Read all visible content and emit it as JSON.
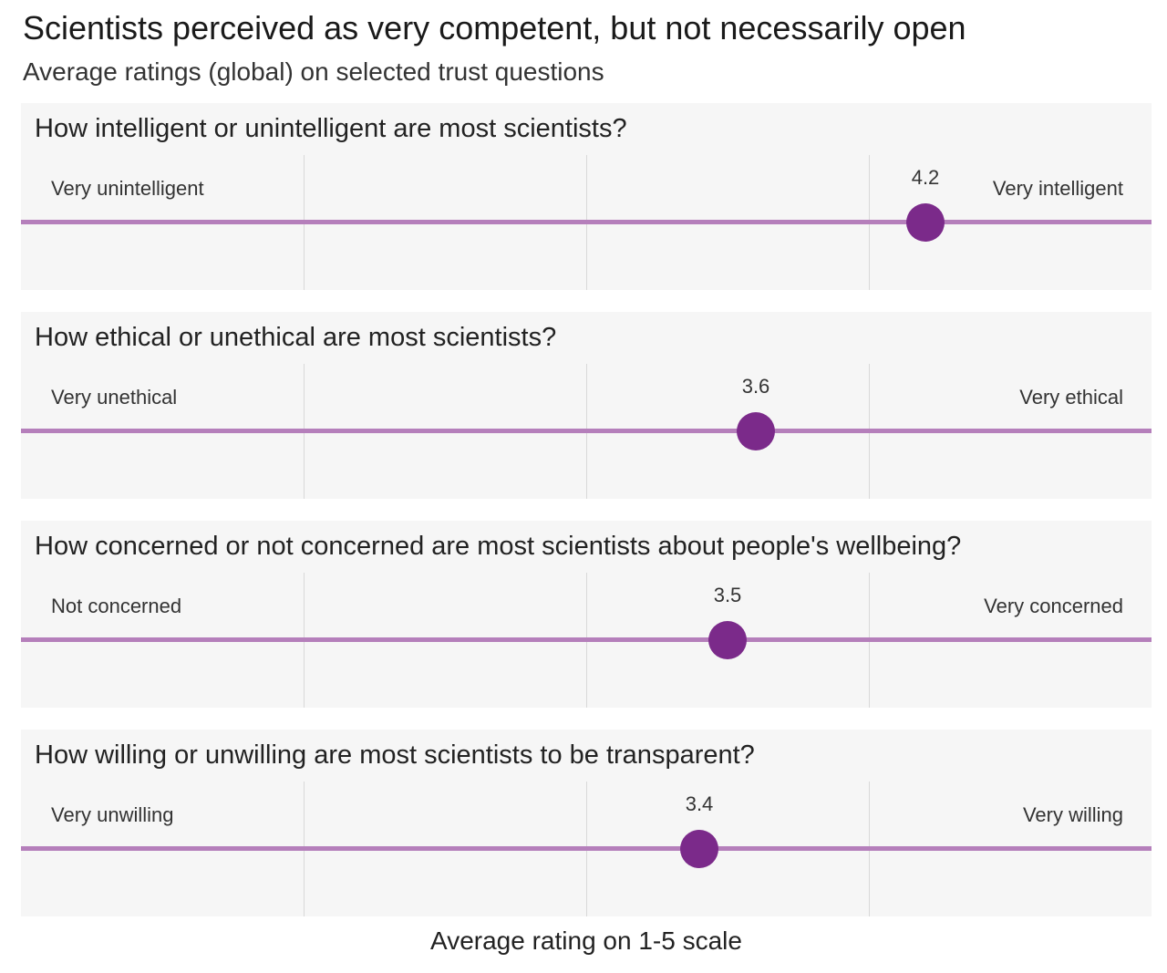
{
  "header": {
    "title": "Scientists perceived as very competent, but not necessarily open",
    "subtitle": "Average ratings (global) on selected trust questions"
  },
  "footer": {
    "xlabel": "Average rating on 1-5 scale"
  },
  "colors": {
    "track": "#b57fbb",
    "dot": "#7b2a8a",
    "panel_bg": "#f6f6f6",
    "grid": "#d9d9d9"
  },
  "panels": [
    {
      "question": "How intelligent or unintelligent are most scientists?",
      "left_label": "Very unintelligent",
      "right_label": "Very intelligent",
      "value": "4.2"
    },
    {
      "question": "How ethical or unethical are most scientists?",
      "left_label": "Very unethical",
      "right_label": "Very ethical",
      "value": "3.6"
    },
    {
      "question": "How concerned or not concerned are most scientists about people's wellbeing?",
      "left_label": "Not concerned",
      "right_label": "Very concerned",
      "value": "3.5"
    },
    {
      "question": "How willing or unwilling are most scientists to be transparent?",
      "left_label": "Very unwilling",
      "right_label": "Very willing",
      "value": "3.4"
    }
  ],
  "chart_data": {
    "type": "scatter",
    "title": "Scientists perceived as very competent, but not necessarily open",
    "subtitle": "Average ratings (global) on selected trust questions",
    "xlabel": "Average rating on 1-5 scale",
    "ylabel": "",
    "xlim": [
      1,
      5
    ],
    "grid": true,
    "legend": null,
    "categories": [
      "How intelligent or unintelligent are most scientists?",
      "How ethical or unethical are most scientists?",
      "How concerned or not concerned are most scientists about people's wellbeing?",
      "How willing or unwilling are most scientists to be transparent?"
    ],
    "values": [
      4.2,
      3.6,
      3.5,
      3.4
    ],
    "scale_labels": [
      {
        "low": "Very unintelligent",
        "high": "Very intelligent"
      },
      {
        "low": "Very unethical",
        "high": "Very ethical"
      },
      {
        "low": "Not concerned",
        "high": "Very concerned"
      },
      {
        "low": "Very unwilling",
        "high": "Very willing"
      }
    ]
  }
}
